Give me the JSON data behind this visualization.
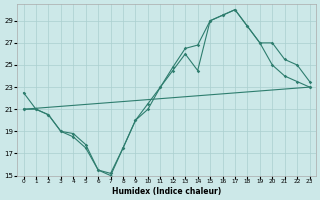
{
  "bg_color": "#cce8e8",
  "grid_color": "#aacfcf",
  "line_color": "#2e7d6e",
  "xlabel": "Humidex (Indice chaleur)",
  "xlim": [
    -0.5,
    23.5
  ],
  "ylim": [
    15,
    30.5
  ],
  "yticks": [
    15,
    17,
    19,
    21,
    23,
    25,
    27,
    29
  ],
  "xticks": [
    0,
    1,
    2,
    3,
    4,
    5,
    6,
    7,
    8,
    9,
    10,
    11,
    12,
    13,
    14,
    15,
    16,
    17,
    18,
    19,
    20,
    21,
    22,
    23
  ],
  "series": [
    {
      "x": [
        0,
        1,
        2,
        3,
        4,
        5,
        6,
        7,
        8,
        9,
        10,
        11,
        12,
        13,
        14,
        15,
        16,
        17,
        18,
        19,
        20,
        21,
        22,
        23
      ],
      "y": [
        22.5,
        21.0,
        20.5,
        19.0,
        18.5,
        17.5,
        15.5,
        15.0,
        17.5,
        20.0,
        21.0,
        23.0,
        24.5,
        26.0,
        24.5,
        29.0,
        29.5,
        30.0,
        28.5,
        27.0,
        25.0,
        24.0,
        23.5,
        23.0
      ]
    },
    {
      "x": [
        0,
        1,
        2,
        3,
        4,
        5,
        6,
        7,
        8,
        9,
        10,
        11,
        12,
        13,
        14,
        15,
        16,
        17,
        18,
        19,
        20,
        21,
        22,
        23
      ],
      "y": [
        21.0,
        21.0,
        20.5,
        19.0,
        18.8,
        17.8,
        15.5,
        15.2,
        17.5,
        20.0,
        21.5,
        23.0,
        24.8,
        26.5,
        26.8,
        29.0,
        29.5,
        30.0,
        28.5,
        27.0,
        27.0,
        25.5,
        25.0,
        23.5
      ]
    },
    {
      "x": [
        0,
        23
      ],
      "y": [
        21.0,
        23.0
      ]
    }
  ]
}
